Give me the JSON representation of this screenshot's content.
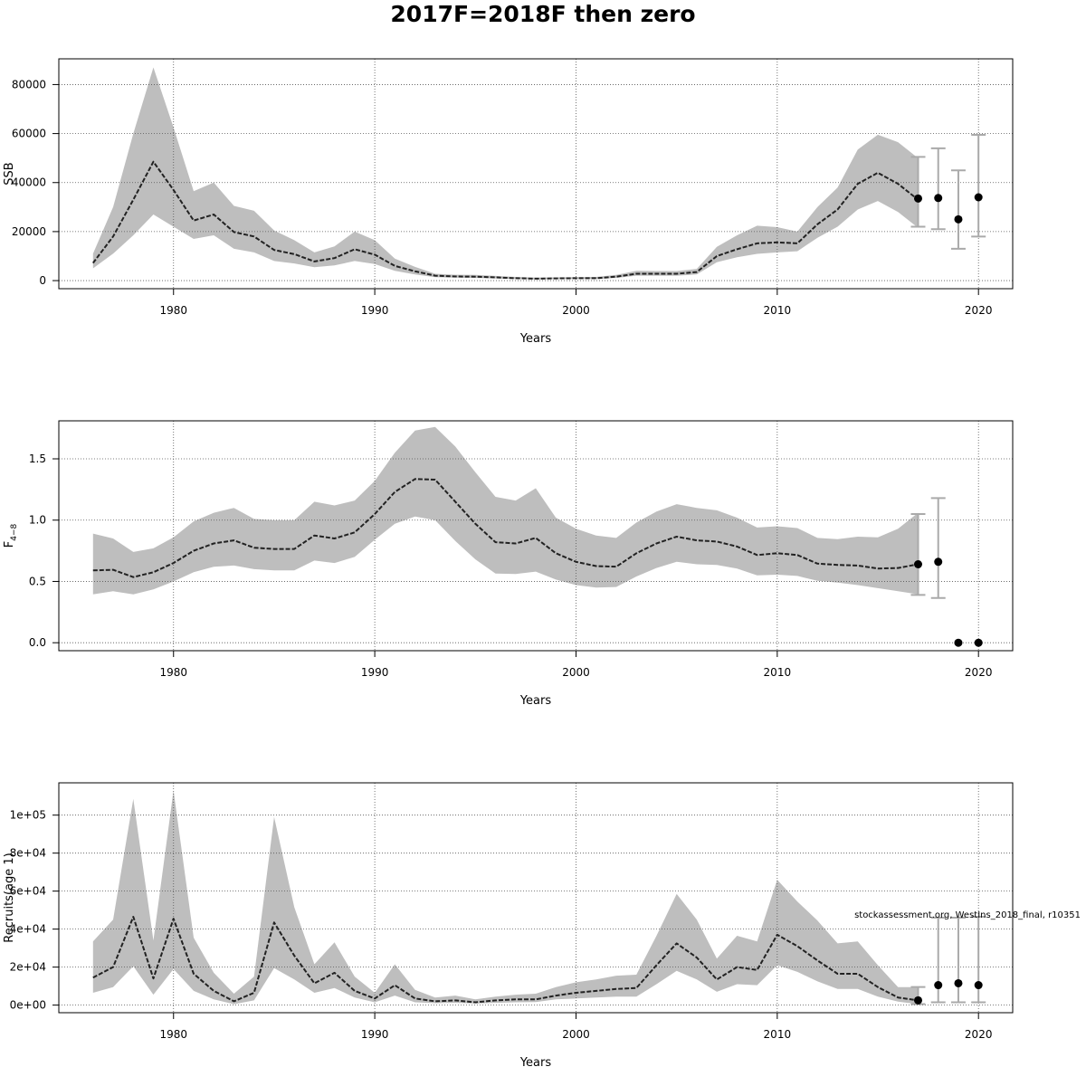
{
  "title": "2017F=2018F then zero",
  "watermark": "stockassessment.org, WestIns_2018_final, r10351",
  "colors": {
    "band": "#bebebe",
    "line": "#222222",
    "errorbar": "#aaaaaa",
    "point": "#000000",
    "grid": "#555555"
  },
  "chart_data": [
    {
      "type": "area",
      "ylabel": "SSB",
      "xlabel": "Years",
      "xlim": [
        1974.3,
        2021.7
      ],
      "ylim": [
        -3300,
        90500
      ],
      "xticks": [
        1980,
        1990,
        2000,
        2010,
        2020
      ],
      "yticks": [
        0,
        20000,
        40000,
        60000,
        80000
      ],
      "ytick_labels": [
        "0",
        "20000",
        "40000",
        "60000",
        "80000"
      ],
      "grid": true,
      "x": [
        1976,
        1977,
        1978,
        1979,
        1980,
        1981,
        1982,
        1983,
        1984,
        1985,
        1986,
        1987,
        1988,
        1989,
        1990,
        1991,
        1992,
        1993,
        1994,
        1995,
        1996,
        1997,
        1998,
        1999,
        2000,
        2001,
        2002,
        2003,
        2004,
        2005,
        2006,
        2007,
        2008,
        2009,
        2010,
        2011,
        2012,
        2013,
        2014,
        2015,
        2016,
        2017
      ],
      "estimate": [
        7200,
        18000,
        33000,
        48500,
        37000,
        24500,
        27000,
        19800,
        18000,
        12500,
        10800,
        7800,
        9200,
        12800,
        10600,
        6000,
        3800,
        2000,
        1700,
        1600,
        1300,
        1000,
        800,
        900,
        1000,
        1000,
        1600,
        2800,
        2800,
        2800,
        3500,
        10000,
        12800,
        15200,
        15600,
        15200,
        23000,
        29000,
        39500,
        44000,
        39500,
        33000
      ],
      "lower": [
        5000,
        11000,
        18500,
        27000,
        22000,
        17000,
        18500,
        13000,
        11500,
        8000,
        7000,
        5500,
        6200,
        8000,
        6800,
        4000,
        2500,
        1400,
        1200,
        1100,
        900,
        700,
        500,
        600,
        700,
        700,
        1100,
        2000,
        2000,
        2000,
        2500,
        7500,
        9500,
        10900,
        11500,
        12000,
        17500,
        22000,
        29000,
        32500,
        28000,
        21500
      ],
      "upper": [
        11000,
        30000,
        60000,
        87000,
        62500,
        36500,
        40000,
        30500,
        28500,
        20500,
        16500,
        11500,
        14000,
        20000,
        16500,
        9000,
        5600,
        2800,
        2400,
        2300,
        1900,
        1500,
        1200,
        1300,
        1400,
        1500,
        2300,
        4000,
        3900,
        3900,
        4800,
        13800,
        18500,
        22400,
        21800,
        20000,
        30000,
        38000,
        53500,
        59500,
        56500,
        50000
      ],
      "forecast": {
        "x": [
          2017,
          2018,
          2019,
          2020
        ],
        "median": [
          33500,
          33700,
          25000,
          34000
        ],
        "low": [
          22000,
          21000,
          13000,
          18000
        ],
        "high": [
          50500,
          54000,
          45000,
          59500
        ]
      }
    },
    {
      "type": "area",
      "ylabel": "F4-8",
      "ylabel_main": "F",
      "ylabel_sub": "4−8",
      "xlabel": "Years",
      "xlim": [
        1974.3,
        2021.7
      ],
      "ylim": [
        -0.065,
        1.81
      ],
      "xticks": [
        1980,
        1990,
        2000,
        2010,
        2020
      ],
      "yticks": [
        0,
        0.5,
        1,
        1.5
      ],
      "ytick_labels": [
        "0.0",
        "0.5",
        "1.0",
        "1.5"
      ],
      "grid": true,
      "x": [
        1976,
        1977,
        1978,
        1979,
        1980,
        1981,
        1982,
        1983,
        1984,
        1985,
        1986,
        1987,
        1988,
        1989,
        1990,
        1991,
        1992,
        1993,
        1994,
        1995,
        1996,
        1997,
        1998,
        1999,
        2000,
        2001,
        2002,
        2003,
        2004,
        2005,
        2006,
        2007,
        2008,
        2009,
        2010,
        2011,
        2012,
        2013,
        2014,
        2015,
        2016,
        2017
      ],
      "estimate": [
        0.59,
        0.595,
        0.535,
        0.575,
        0.65,
        0.75,
        0.81,
        0.835,
        0.775,
        0.765,
        0.765,
        0.875,
        0.85,
        0.9,
        1.05,
        1.23,
        1.335,
        1.33,
        1.15,
        0.97,
        0.82,
        0.81,
        0.855,
        0.73,
        0.66,
        0.625,
        0.62,
        0.73,
        0.81,
        0.865,
        0.835,
        0.825,
        0.785,
        0.715,
        0.73,
        0.715,
        0.645,
        0.635,
        0.63,
        0.605,
        0.61,
        0.64
      ],
      "lower": [
        0.395,
        0.42,
        0.395,
        0.435,
        0.5,
        0.575,
        0.62,
        0.63,
        0.6,
        0.59,
        0.59,
        0.67,
        0.65,
        0.7,
        0.84,
        0.97,
        1.03,
        1.0,
        0.83,
        0.68,
        0.565,
        0.56,
        0.58,
        0.515,
        0.47,
        0.45,
        0.455,
        0.54,
        0.61,
        0.66,
        0.64,
        0.635,
        0.605,
        0.55,
        0.555,
        0.545,
        0.505,
        0.49,
        0.47,
        0.445,
        0.42,
        0.395
      ],
      "upper": [
        0.89,
        0.85,
        0.74,
        0.77,
        0.86,
        0.99,
        1.06,
        1.1,
        1.01,
        1.0,
        1.0,
        1.15,
        1.12,
        1.16,
        1.32,
        1.55,
        1.73,
        1.76,
        1.6,
        1.39,
        1.19,
        1.16,
        1.26,
        1.02,
        0.93,
        0.875,
        0.855,
        0.98,
        1.07,
        1.13,
        1.1,
        1.08,
        1.02,
        0.94,
        0.95,
        0.935,
        0.855,
        0.845,
        0.865,
        0.86,
        0.93,
        1.06
      ],
      "forecast": {
        "x": [
          2017,
          2018,
          2019,
          2020
        ],
        "median": [
          0.64,
          0.66,
          0,
          0
        ],
        "low": [
          0.39,
          0.365,
          null,
          null
        ],
        "high": [
          1.05,
          1.18,
          null,
          null
        ]
      }
    },
    {
      "type": "area",
      "ylabel": "Recruits(age 1)",
      "xlabel": "Years",
      "xlim": [
        1974.3,
        2021.7
      ],
      "ylim": [
        -4000,
        117000
      ],
      "xticks": [
        1980,
        1990,
        2000,
        2010,
        2020
      ],
      "yticks": [
        0,
        20000,
        40000,
        60000,
        80000,
        100000
      ],
      "ytick_labels": [
        "0e+00",
        "2e+04",
        "4e+04",
        "6e+04",
        "8e+04",
        "1e+05"
      ],
      "grid": true,
      "x": [
        1976,
        1977,
        1978,
        1979,
        1980,
        1981,
        1982,
        1983,
        1984,
        1985,
        1986,
        1987,
        1988,
        1989,
        1990,
        1991,
        1992,
        1993,
        1994,
        1995,
        1996,
        1997,
        1998,
        1999,
        2000,
        2001,
        2002,
        2003,
        2004,
        2005,
        2006,
        2007,
        2008,
        2009,
        2010,
        2011,
        2012,
        2013,
        2014,
        2015,
        2016,
        2017
      ],
      "estimate": [
        14500,
        20000,
        46500,
        14000,
        45500,
        16500,
        7500,
        2000,
        6500,
        43500,
        26000,
        11500,
        17000,
        7500,
        3500,
        10500,
        3500,
        2000,
        2500,
        1500,
        2500,
        3000,
        3000,
        5000,
        6500,
        7500,
        8500,
        9000,
        21000,
        32500,
        25000,
        13500,
        20000,
        18500,
        37000,
        31000,
        23500,
        16500,
        16500,
        9500,
        4000,
        2500
      ],
      "lower": [
        6500,
        9500,
        20500,
        5500,
        19000,
        7500,
        3000,
        500,
        2500,
        19500,
        13500,
        6500,
        9000,
        4000,
        1500,
        5000,
        1500,
        1000,
        1200,
        800,
        1200,
        1500,
        1600,
        3000,
        3500,
        4000,
        4500,
        4500,
        11000,
        18000,
        13500,
        7000,
        11000,
        10500,
        21000,
        17500,
        12500,
        8500,
        8500,
        4500,
        1800,
        500
      ],
      "upper": [
        33500,
        45000,
        108500,
        34000,
        113000,
        35500,
        17000,
        6000,
        15000,
        99000,
        51500,
        21500,
        33000,
        15000,
        6500,
        21500,
        8000,
        4000,
        5000,
        3000,
        4500,
        5500,
        6000,
        9500,
        12000,
        13500,
        15500,
        16000,
        36500,
        58500,
        45000,
        24500,
        36500,
        33500,
        66000,
        54500,
        44500,
        32500,
        33500,
        21000,
        9500,
        9500
      ],
      "forecast": {
        "x": [
          2017,
          2018,
          2019,
          2020
        ],
        "median": [
          2500,
          10500,
          11500,
          10500
        ],
        "low": [
          500,
          1500,
          1500,
          1500
        ],
        "high": [
          9500,
          46000,
          46000,
          46500
        ]
      }
    }
  ]
}
